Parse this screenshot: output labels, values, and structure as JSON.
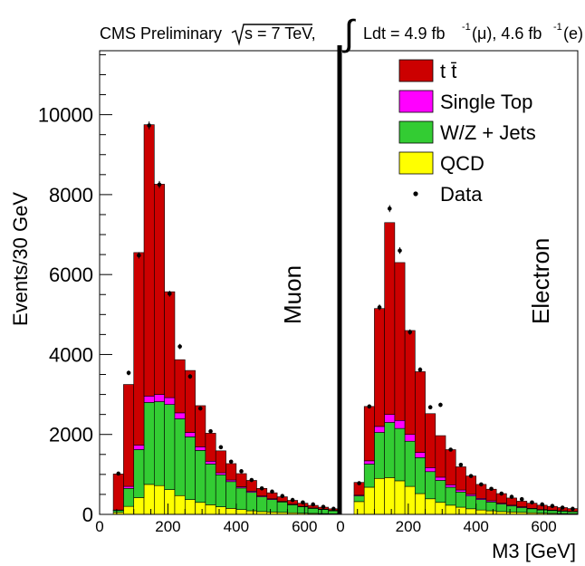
{
  "chart_data": {
    "type": "bar",
    "stacked": true,
    "header": {
      "prefix": "CMS Preliminary ",
      "sqrt_s": "s = 7 TeV,",
      "lumi_mu": "Ldt = 4.9 fb",
      "exp": "-1",
      "paren_mu": "(μ), 4.6 fb",
      "paren_e": "(e)"
    },
    "ylabel": "Events/30 GeV",
    "xlabel": "M3 [GeV]",
    "ylim": [
      0,
      11600
    ],
    "yticks": [
      "0",
      "2000",
      "4000",
      "6000",
      "8000",
      "10000"
    ],
    "ytick_values": [
      0,
      2000,
      4000,
      6000,
      8000,
      10000
    ],
    "xlim": [
      0,
      700
    ],
    "xticks": [
      "0",
      "200",
      "400",
      "600"
    ],
    "xtick_values": [
      0,
      200,
      400,
      600
    ],
    "grid": false,
    "legend_position": "top-right",
    "legend": [
      {
        "label": "t t̄",
        "color": "#cc0000",
        "kind": "box"
      },
      {
        "label": "Single Top",
        "color": "#ff00ff",
        "kind": "box"
      },
      {
        "label": "W/Z + Jets",
        "color": "#33cc33",
        "kind": "box"
      },
      {
        "label": "QCD",
        "color": "#ffff00",
        "kind": "box"
      },
      {
        "label": "Data",
        "color": "#000000",
        "kind": "marker"
      }
    ],
    "bin_width": 30,
    "panels": [
      {
        "name": "Muon",
        "bin_edges": [
          10,
          40,
          70,
          100,
          130,
          160,
          190,
          220,
          250,
          280,
          310,
          340,
          370,
          400,
          430,
          460,
          490,
          520,
          550,
          580,
          610,
          640,
          670,
          700
        ],
        "series": [
          {
            "name": "QCD",
            "color": "#ffff00",
            "values": [
              0,
              50,
              200,
              420,
              750,
              720,
              620,
              470,
              370,
              300,
              240,
              190,
              150,
              120,
              90,
              70,
              60,
              50,
              40,
              30,
              25,
              20,
              15
            ]
          },
          {
            "name": "W/Z + Jets",
            "color": "#33cc33",
            "values": [
              0,
              50,
              450,
              1200,
              2050,
              2100,
              2130,
              1920,
              1570,
              1300,
              1020,
              800,
              670,
              540,
              460,
              370,
              310,
              260,
              200,
              160,
              125,
              100,
              75
            ]
          },
          {
            "name": "Single Top",
            "color": "#ff00ff",
            "values": [
              0,
              10,
              50,
              110,
              160,
              180,
              170,
              150,
              110,
              90,
              70,
              50,
              40,
              30,
              30,
              20,
              20,
              15,
              15,
              10,
              10,
              10,
              10
            ]
          },
          {
            "name": "t t̄",
            "color": "#cc0000",
            "values": [
              0,
              900,
              2550,
              4820,
              6790,
              5260,
              2650,
              1330,
              1550,
              1030,
              700,
              550,
              410,
              330,
              270,
              190,
              150,
              115,
              95,
              80,
              65,
              50,
              40
            ]
          }
        ],
        "data": [
          0,
          1020,
          3540,
          6480,
          9730,
          8250,
          5520,
          4200,
          3450,
          2650,
          2080,
          1680,
          1320,
          1080,
          860,
          650,
          570,
          460,
          360,
          300,
          250,
          190,
          140
        ]
      },
      {
        "name": "Electron",
        "bin_edges": [
          10,
          40,
          70,
          100,
          130,
          160,
          190,
          220,
          250,
          280,
          310,
          340,
          370,
          400,
          430,
          460,
          490,
          520,
          550,
          580,
          610,
          640,
          670,
          700
        ],
        "series": [
          {
            "name": "QCD",
            "color": "#ffff00",
            "values": [
              0,
              320,
              680,
              900,
              920,
              840,
              700,
              520,
              390,
              300,
              230,
              180,
              140,
              110,
              90,
              70,
              60,
              50,
              40,
              30,
              25,
              20,
              15
            ]
          },
          {
            "name": "W/Z + Jets",
            "color": "#33cc33",
            "values": [
              0,
              140,
              580,
              1150,
              1380,
              1310,
              1130,
              900,
              680,
              550,
              450,
              380,
              320,
              260,
              220,
              190,
              150,
              120,
              100,
              80,
              70,
              60,
              50
            ]
          },
          {
            "name": "Single Top",
            "color": "#ff00ff",
            "values": [
              0,
              20,
              80,
              150,
              200,
              200,
              170,
              130,
              100,
              80,
              60,
              50,
              40,
              30,
              30,
              20,
              20,
              20,
              10,
              10,
              10,
              10,
              10
            ]
          },
          {
            "name": "t t̄",
            "color": "#cc0000",
            "values": [
              0,
              320,
              1360,
              2950,
              4800,
              3950,
              2600,
              2020,
              1350,
              1040,
              880,
              580,
              460,
              350,
              290,
              240,
              180,
              140,
              130,
              110,
              95,
              80,
              70
            ]
          }
        ],
        "data": [
          0,
          780,
          2700,
          5180,
          7650,
          6600,
          4560,
          3620,
          2680,
          2740,
          1620,
          1240,
          960,
          750,
          640,
          520,
          440,
          380,
          300,
          250,
          210,
          170,
          140
        ]
      }
    ]
  }
}
